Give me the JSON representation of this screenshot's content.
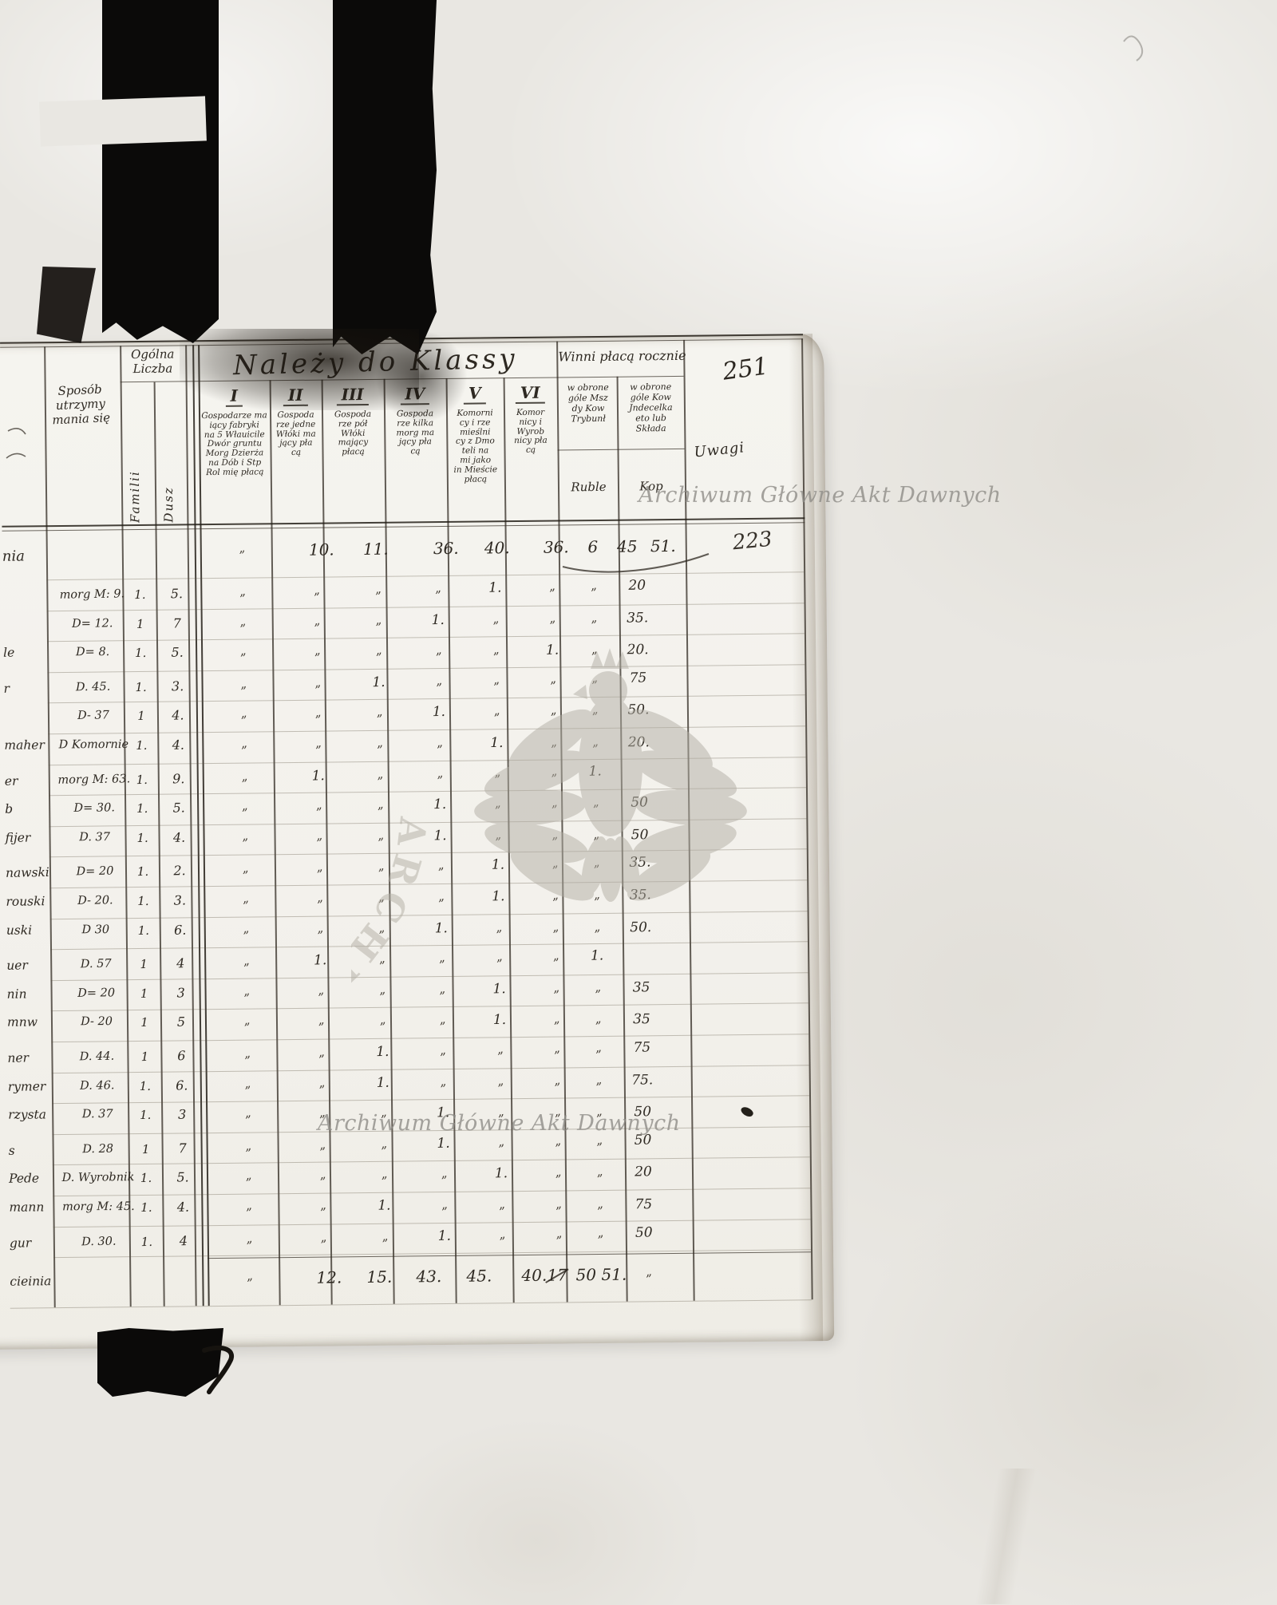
{
  "page": {
    "folio_number": "251",
    "entry_number": "223",
    "watermark_text": "Archiwum Główne Akt Dawnych",
    "stamp_ring_text": "ARCHIWUM GŁÓWNE AKT DAWNYCH"
  },
  "header": {
    "sposob": [
      "Sposób",
      "utrzymy",
      "mania się"
    ],
    "ogolna": [
      "Ogólna",
      "Liczba"
    ],
    "familii": "Familii",
    "dusz": "Dusz",
    "nalezy": "Należy do Klassy",
    "winni": "Winni płacą rocznie",
    "classes": [
      {
        "num": "I",
        "desc": [
          "Gospodarze ma",
          "iący fabryki",
          "na 5 Włauicile",
          "Dwór gruntu",
          "Morg Dzierża",
          "na Dób i Stp",
          "Rol mię płacą"
        ]
      },
      {
        "num": "II",
        "desc": [
          "Gospoda",
          "rze jedne",
          "Włóki ma",
          "jący pła",
          "cą"
        ]
      },
      {
        "num": "III",
        "desc": [
          "Gospoda",
          "rze pół",
          "Włóki",
          "mający",
          "płacą"
        ]
      },
      {
        "num": "IV",
        "desc": [
          "Gospoda",
          "rze kilka",
          "morg ma",
          "jący pła",
          "cą"
        ]
      },
      {
        "num": "V",
        "desc": [
          "Komorni",
          "cy i rze",
          "mieślni",
          "cy z Dmo",
          "teli na",
          "mi jako",
          "in Mieście",
          "płacą"
        ]
      },
      {
        "num": "VI",
        "desc": [
          "Komor",
          "nicy i",
          "Wyrob",
          "nicy pła",
          "cą"
        ]
      }
    ],
    "winni_sub": [
      [
        "w obrone",
        "góle Msz",
        "dy Kow",
        "Trybunł"
      ],
      [
        "w obrone",
        "góle Kow",
        "Jndecelka",
        "eto lub",
        "Składa"
      ]
    ],
    "ruble": "Ruble",
    "kop": "Kop",
    "uwagi": "Uwagi"
  },
  "totals_row": {
    "name": "nia",
    "cells": {
      "I": "„",
      "II": "10.",
      "III": "11.",
      "IV": "36.",
      "V": "40.",
      "VI": "36.",
      "R": "6",
      "K": "45",
      "X": "51."
    },
    "uwagi": "223"
  },
  "rows": [
    {
      "n": "",
      "m": "morg M: 9.",
      "f": "1.",
      "d": "5.",
      "marks": {
        "I": "„",
        "II": "„",
        "III": "„",
        "IV": "„",
        "V": "1.",
        "VI": "„",
        "R": "„",
        "K": "20"
      }
    },
    {
      "n": "",
      "m": "D= 12.",
      "f": "1",
      "d": "7",
      "marks": {
        "I": "„",
        "II": "„",
        "III": "„",
        "IV": "1.",
        "V": "„",
        "VI": "„",
        "R": "„",
        "K": "35."
      }
    },
    {
      "n": "le",
      "m": "D= 8.",
      "f": "1.",
      "d": "5.",
      "marks": {
        "I": "„",
        "II": "„",
        "III": "„",
        "IV": "„",
        "V": "„",
        "VI": "1.",
        "R": "„",
        "K": "20."
      }
    },
    {
      "n": "r",
      "m": "D. 45.",
      "f": "1.",
      "d": "3.",
      "marks": {
        "I": "„",
        "II": "„",
        "III": "1.",
        "IV": "„",
        "V": "„",
        "VI": "„",
        "R": "„",
        "K": "75"
      }
    },
    {
      "n": "",
      "m": "D- 37",
      "f": "1",
      "d": "4.",
      "marks": {
        "I": "„",
        "II": "„",
        "III": "„",
        "IV": "1.",
        "V": "„",
        "VI": "„",
        "R": "„",
        "K": "50."
      }
    },
    {
      "n": "maher",
      "m": "D Komornie",
      "f": "1.",
      "d": "4.",
      "marks": {
        "I": "„",
        "II": "„",
        "III": "„",
        "IV": "„",
        "V": "1.",
        "VI": "„",
        "R": "„",
        "K": "20."
      }
    },
    {
      "n": "er",
      "m": "morg M: 63.",
      "f": "1.",
      "d": "9.",
      "marks": {
        "I": "„",
        "II": "1.",
        "III": "„",
        "IV": "„",
        "V": "„",
        "VI": "„",
        "R": "1.",
        "K": ""
      }
    },
    {
      "n": "b",
      "m": "D= 30.",
      "f": "1.",
      "d": "5.",
      "marks": {
        "I": "„",
        "II": "„",
        "III": "„",
        "IV": "1.",
        "V": "„",
        "VI": "„",
        "R": "„",
        "K": "50"
      }
    },
    {
      "n": "fijer",
      "m": "D. 37",
      "f": "1.",
      "d": "4.",
      "marks": {
        "I": "„",
        "II": "„",
        "III": "„",
        "IV": "1.",
        "V": "„",
        "VI": "„",
        "R": "„",
        "K": "50"
      }
    },
    {
      "n": "nawski",
      "m": "D= 20",
      "f": "1.",
      "d": "2.",
      "marks": {
        "I": "„",
        "II": "„",
        "III": "„",
        "IV": "„",
        "V": "1.",
        "VI": "„",
        "R": "„",
        "K": "35."
      }
    },
    {
      "n": "rouski",
      "m": "D- 20.",
      "f": "1.",
      "d": "3.",
      "marks": {
        "I": "„",
        "II": "„",
        "III": "„",
        "IV": "„",
        "V": "1.",
        "VI": "„",
        "R": "„",
        "K": "35."
      }
    },
    {
      "n": "uski",
      "m": "D 30",
      "f": "1.",
      "d": "6.",
      "marks": {
        "I": "„",
        "II": "„",
        "III": "„",
        "IV": "1.",
        "V": "„",
        "VI": "„",
        "R": "„",
        "K": "50."
      }
    },
    {
      "n": "uer",
      "m": "D. 57",
      "f": "1",
      "d": "4",
      "marks": {
        "I": "„",
        "II": "1.",
        "III": "„",
        "IV": "„",
        "V": "„",
        "VI": "„",
        "R": "1.",
        "K": ""
      }
    },
    {
      "n": "nin",
      "m": "D= 20",
      "f": "1",
      "d": "3",
      "marks": {
        "I": "„",
        "II": "„",
        "III": "„",
        "IV": "„",
        "V": "1.",
        "VI": "„",
        "R": "„",
        "K": "35"
      }
    },
    {
      "n": "mnw",
      "m": "D- 20",
      "f": "1",
      "d": "5",
      "marks": {
        "I": "„",
        "II": "„",
        "III": "„",
        "IV": "„",
        "V": "1.",
        "VI": "„",
        "R": "„",
        "K": "35"
      }
    },
    {
      "n": "ner",
      "m": "D. 44.",
      "f": "1",
      "d": "6",
      "marks": {
        "I": "„",
        "II": "„",
        "III": "1.",
        "IV": "„",
        "V": "„",
        "VI": "„",
        "R": "„",
        "K": "75"
      }
    },
    {
      "n": "rymer",
      "m": "D. 46.",
      "f": "1.",
      "d": "6.",
      "marks": {
        "I": "„",
        "II": "„",
        "III": "1.",
        "IV": "„",
        "V": "„",
        "VI": "„",
        "R": "„",
        "K": "75."
      }
    },
    {
      "n": "rzysta",
      "m": "D. 37",
      "f": "1.",
      "d": "3",
      "marks": {
        "I": "„",
        "II": "„",
        "III": "„",
        "IV": "1.",
        "V": "„",
        "VI": "„",
        "R": "„",
        "K": "50"
      }
    },
    {
      "n": "s",
      "m": "D. 28",
      "f": "1",
      "d": "7",
      "marks": {
        "I": "„",
        "II": "„",
        "III": "„",
        "IV": "1.",
        "V": "„",
        "VI": "„",
        "R": "„",
        "K": "50"
      }
    },
    {
      "n": "Pede",
      "m": "D. Wyrobnik",
      "f": "1.",
      "d": "5.",
      "marks": {
        "I": "„",
        "II": "„",
        "III": "„",
        "IV": "„",
        "V": "1.",
        "VI": "„",
        "R": "„",
        "K": "20"
      }
    },
    {
      "n": "mann",
      "m": "morg M: 45.",
      "f": "1.",
      "d": "4.",
      "marks": {
        "I": "„",
        "II": "„",
        "III": "1.",
        "IV": "„",
        "V": "„",
        "VI": "„",
        "R": "„",
        "K": "75"
      }
    },
    {
      "n": "gur",
      "m": "D. 30.",
      "f": "1.",
      "d": "4",
      "marks": {
        "I": "„",
        "II": "„",
        "III": "„",
        "IV": "1.",
        "V": "„",
        "VI": "„",
        "R": "„",
        "K": "50"
      }
    }
  ],
  "summary_row": {
    "name": "cieinia",
    "cells": {
      "I": "„",
      "II": "12.",
      "III": "15.",
      "IV": "43.",
      "V": "45.",
      "VI": "40.",
      "R": "17",
      "K": "50",
      "X": "51.",
      "X2": "„"
    }
  }
}
